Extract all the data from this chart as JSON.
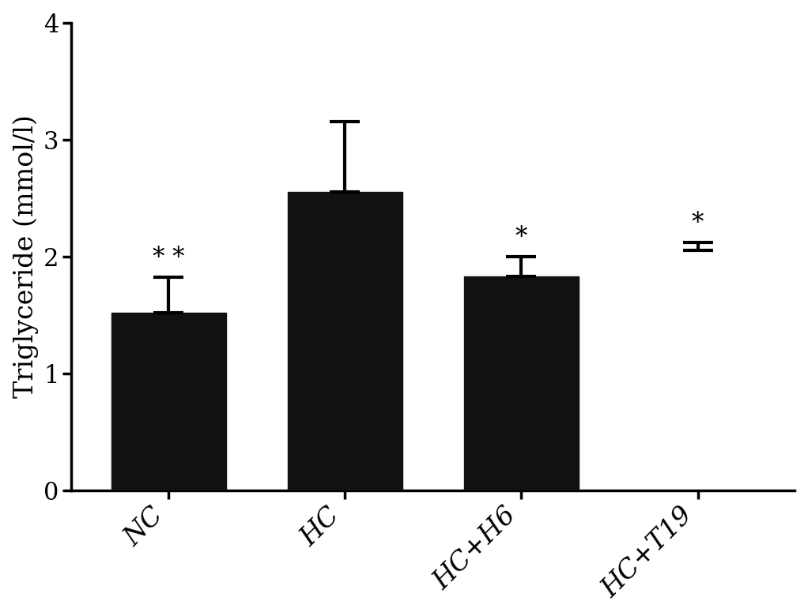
{
  "categories": [
    "NC",
    "HC",
    "HC+H6",
    "HC+T19"
  ],
  "values": [
    1.52,
    2.55,
    1.83,
    2.05
  ],
  "upper_errors": [
    0.3,
    0.6,
    0.17,
    0.07
  ],
  "bar_color": "#111111",
  "background_color": "#ffffff",
  "ylabel": "Triglyceride (mmol/l)",
  "ylim": [
    0,
    4
  ],
  "yticks": [
    0,
    1,
    2,
    3,
    4
  ],
  "significance": [
    "* *",
    "",
    "*",
    "*"
  ],
  "show_bar": [
    true,
    true,
    true,
    false
  ],
  "bar_width": 0.65,
  "figsize": [
    10.22,
    7.8
  ],
  "dpi": 100,
  "sig_fontsize": 22,
  "ylabel_fontsize": 24,
  "tick_fontsize": 22,
  "xtick_fontsize": 24,
  "capsize": 14,
  "error_linewidth": 3.0,
  "spine_linewidth": 2.5
}
